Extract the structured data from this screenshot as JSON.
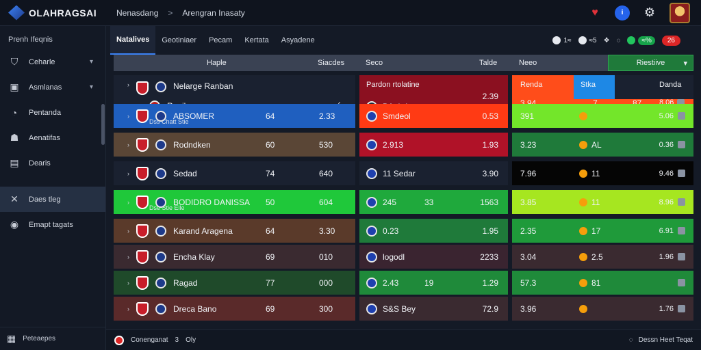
{
  "app": {
    "logo_text": "OLAHRAGSAI"
  },
  "breadcrumb": {
    "first": "Nenasdang",
    "sep": ">",
    "second": "Arengran Inasaty"
  },
  "sidebar": {
    "header": "Prenh Ifeqnis",
    "items": [
      {
        "label": "Ceharle",
        "icon": "shield-icon",
        "has_chevron": true
      },
      {
        "label": "Asmlanas",
        "icon": "briefcase-icon",
        "has_chevron": true
      },
      {
        "label": "Pentanda",
        "icon": "chat-icon",
        "has_chevron": false
      },
      {
        "label": "Aenatifas",
        "icon": "users-icon",
        "has_chevron": false
      },
      {
        "label": "Dearis",
        "icon": "document-icon",
        "has_chevron": false
      },
      {
        "label": "Daes tleg",
        "icon": "tag-icon",
        "has_chevron": false,
        "active": true
      },
      {
        "label": "Emapt tagats",
        "icon": "circle-icon",
        "has_chevron": false
      }
    ],
    "footer": "Peteaepes"
  },
  "tabs": [
    {
      "label": "Natalives",
      "active": true
    },
    {
      "label": "Geotiniaer"
    },
    {
      "label": "Pecam"
    },
    {
      "label": "Kertata"
    },
    {
      "label": "Asyadene"
    }
  ],
  "tab_actions": {
    "a1": "1≈",
    "a2": "≈5",
    "a3": "❖",
    "green_pill": "≈%",
    "red_pill": "26"
  },
  "columns": {
    "c1": "Haple",
    "c2": "Siacdes",
    "c3": "Seco",
    "c4": "Talde",
    "c5": "Neeo",
    "live": "Riestiive"
  },
  "rows": [
    {
      "team": "Nelarge Ranban",
      "team2": "Regib",
      "v1": "",
      "v2": "",
      "mid_label": "Pardon rtolatine",
      "mid_sub": "BAebdo",
      "mid_val": "2.39",
      "r1": "Renda",
      "r1b": "Stka",
      "r2": "3.94",
      "r3": "7",
      "r4": "87",
      "rv_top": "Danda",
      "rv": "8.06",
      "bg_team": "#1a2130",
      "bg_mid": "#8b1020",
      "bg_right": "#ff4d1a",
      "bg_r2": "#d9401a"
    },
    {
      "team": "ABSOMER",
      "sub": "Dss Chatt Stie",
      "v1": "64",
      "v2": "2.33",
      "mid_label": "Smdeol",
      "mid_val": "0.53",
      "r2": "391",
      "rv": "5.06",
      "bg_team": "#1f5fbf",
      "bg_mid": "#ff3a14",
      "bg_right": "#73e62a"
    },
    {
      "team": "Rodndken",
      "v1": "60",
      "v2": "530",
      "mid_label": "2.913",
      "mid_val": "1.93",
      "r2": "3.23",
      "r3": "AL",
      "rv": "0.36",
      "bg_team": "#5a4636",
      "bg_mid": "#b01228",
      "bg_right": "#1f7a3a"
    },
    {
      "team": "Sedad",
      "v1": "74",
      "v2": "640",
      "mid_label": "11 Sedar",
      "mid_val": "3.90",
      "r2": "7.96",
      "r3": "11",
      "rv": "9.46",
      "bg_team": "#1a2130",
      "bg_mid": "#1a2130",
      "bg_right": "#050505"
    },
    {
      "team": "BODIDRO DANISSA",
      "sub": "Dse Stie Elle",
      "v1": "50",
      "v2": "604",
      "mid_label": "245",
      "mid_l2": "33",
      "mid_val": "1563",
      "r2": "3.85",
      "r3": "11",
      "rv": "8.96",
      "bg_team": "#1fc83a",
      "bg_mid": "#1fa93c",
      "bg_right": "#a6e620"
    },
    {
      "team": "Karand Aragena",
      "v1": "64",
      "v2": "3.30",
      "mid_label": "0.23",
      "mid_val": "1.95",
      "r2": "2.35",
      "r3": "17",
      "rv": "6.91",
      "bg_team": "#5a3a2a",
      "bg_mid": "#1f7a3a",
      "bg_right": "#1f9a3a"
    },
    {
      "team": "Encha Klay",
      "v1": "69",
      "v2": "010",
      "mid_label": "logodl",
      "mid_val": "2233",
      "r2": "3.04",
      "r3": "2.5",
      "rv": "1.96",
      "bg_team": "#3a2a30",
      "bg_mid": "#3a2430",
      "bg_right": "#3a2a30"
    },
    {
      "team": "Ragad",
      "v1": "77",
      "v2": "000",
      "mid_label": "2.43",
      "mid_l2": "19",
      "mid_val": "1.29",
      "r2": "57.3",
      "r3": "81",
      "rv": "",
      "bg_team": "#1f4a2a",
      "bg_mid": "#1f8a3a",
      "bg_right": "#1f8a3a"
    },
    {
      "team": "Dreca Bano",
      "v1": "69",
      "v2": "300",
      "mid_label": "S&S Bey",
      "mid_val": "72.9",
      "r2": "3.96",
      "r3": "",
      "rv": "1.76",
      "bg_team": "#5a2a2a",
      "bg_mid": "#3a2a30",
      "bg_right": "#3a2a30"
    }
  ],
  "bottom": {
    "left": "Conenganat",
    "left2": "3",
    "left3": "Oly",
    "right": "Dessn Heet Teqat"
  },
  "colors": {
    "accent": "#3b82f6",
    "live_green": "#1f7a3a"
  }
}
